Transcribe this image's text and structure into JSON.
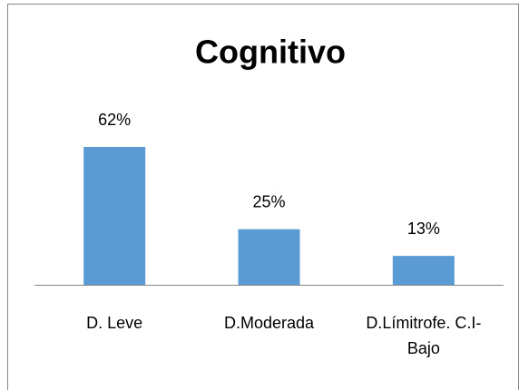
{
  "chart_data": {
    "type": "bar",
    "title": "Cognitivo",
    "categories": [
      "D. Leve",
      "D.Moderada",
      "D.Límitrofe. C.I-Bajo"
    ],
    "values": [
      62,
      25,
      13
    ],
    "value_labels": [
      "62%",
      "25%",
      "13%"
    ],
    "color": "#5b9bd5"
  }
}
